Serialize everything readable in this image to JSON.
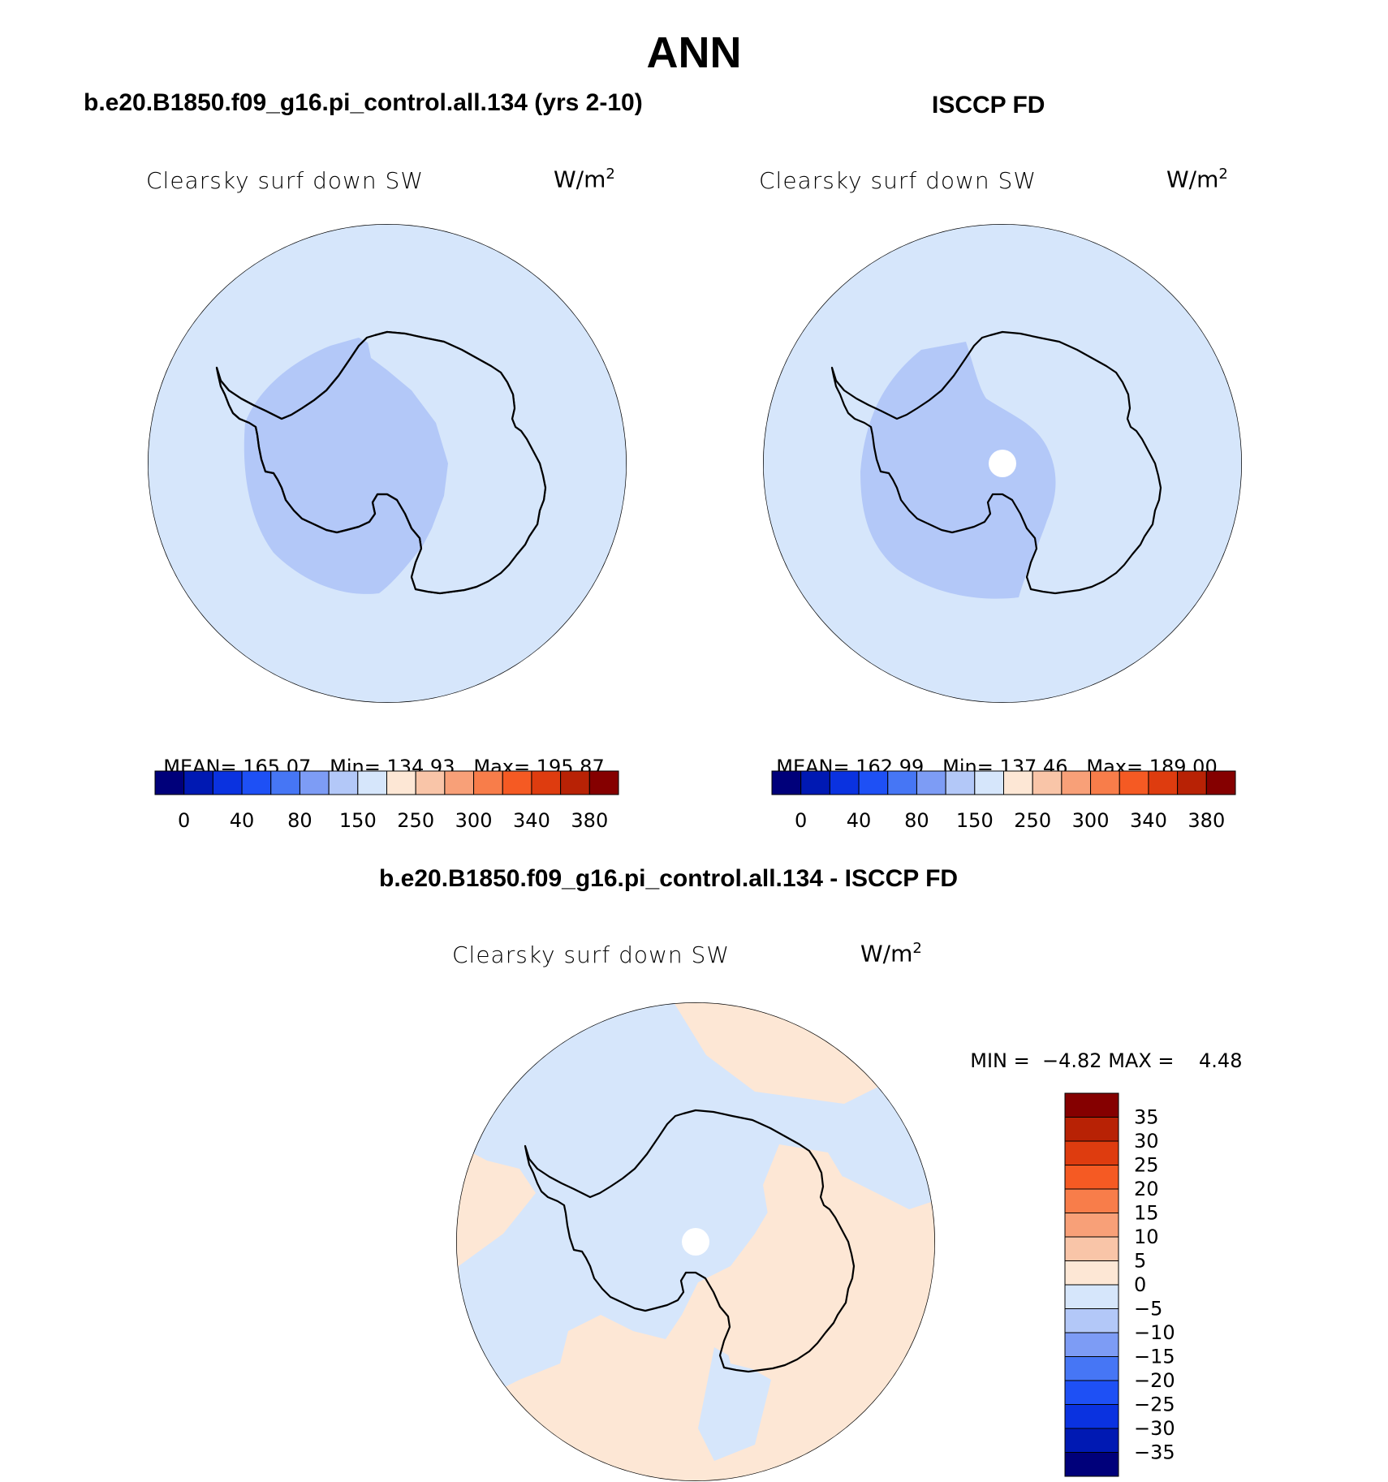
{
  "season": "ANN",
  "panels": {
    "model": {
      "case_title": "b.e20.B1850.f09_g16.pi_control.all.134 (yrs 2-10)",
      "variable": "Clearsky surf down SW",
      "units": "W/m",
      "units_sup": "2",
      "stats": {
        "mean_label": "MEAN=",
        "mean": "165.07",
        "min_label": "Min=",
        "min": "134.93",
        "max_label": "Max=",
        "max": "195.87"
      }
    },
    "obs": {
      "case_title": "ISCCP FD",
      "variable": "Clearsky surf down SW",
      "units": "W/m",
      "units_sup": "2",
      "stats": {
        "mean_label": "MEAN=",
        "mean": "162.99",
        "min_label": "Min=",
        "min": "137.46",
        "max_label": "Max=",
        "max": "189.00"
      }
    },
    "diff": {
      "case_title": "b.e20.B1850.f09_g16.pi_control.all.134 - ISCCP FD",
      "variable": "Clearsky surf down SW",
      "units": "W/m",
      "units_sup": "2",
      "minmax": {
        "min_label": "MIN =",
        "min": "−4.82",
        "max_label": "MAX =",
        "max": "4.48"
      }
    }
  },
  "colorbar_field": {
    "colors": [
      "#00007a",
      "#0019b3",
      "#0a32e0",
      "#1e50f5",
      "#4676f5",
      "#7d9cf5",
      "#b3c8f8",
      "#d6e6fb",
      "#fde7d5",
      "#f9c5a8",
      "#f8a078",
      "#f87d4a",
      "#f55a23",
      "#de3c0f",
      "#b82205",
      "#850000"
    ],
    "tick_labels": [
      "0",
      "40",
      "80",
      "150",
      "250",
      "300",
      "340",
      "380"
    ]
  },
  "colorbar_diff": {
    "colors_top_to_bottom": [
      "#850000",
      "#b82205",
      "#de3c0f",
      "#f55a23",
      "#f87d4a",
      "#f8a078",
      "#f9c5a8",
      "#fde7d5",
      "#d6e6fb",
      "#b3c8f8",
      "#7d9cf5",
      "#4676f5",
      "#1e50f5",
      "#0a32e0",
      "#0019b3",
      "#00007a"
    ],
    "tick_labels": [
      "35",
      "30",
      "25",
      "20",
      "15",
      "10",
      "5",
      "0",
      "−5",
      "−10",
      "−15",
      "−20",
      "−25",
      "−30",
      "−35"
    ]
  },
  "map_colors": {
    "ocean_fill": "#d6e6fb",
    "interior_fill": "#b3c8f8",
    "diff_positive": "#fde7d5",
    "diff_negative": "#d6e6fb",
    "missing": "#ffffff",
    "coast": "#000000"
  }
}
